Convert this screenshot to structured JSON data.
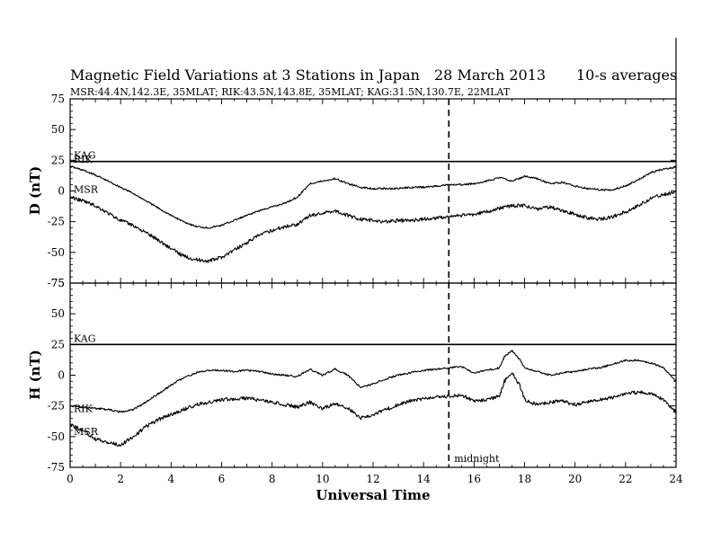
{
  "header": {
    "title": "Magnetic Field Variations at 3 Stations in Japan",
    "date": "28 March   2013",
    "averaging": "10-s averages",
    "stations_line": "MSR:44.4N,142.3E, 35MLAT;  RIK:43.5N,143.8E, 35MLAT;  KAG:31.5N,130.7E, 22MLAT"
  },
  "chart_data": [
    {
      "type": "line",
      "panel": "top",
      "ylabel": "D (nT)",
      "ylim": [
        -75,
        75
      ],
      "yticks": [
        75,
        50,
        25,
        0,
        -25,
        -50,
        -75
      ],
      "xlim": [
        0,
        24
      ],
      "series": [
        {
          "name": "KAG",
          "x": [
            0,
            24
          ],
          "y": [
            24,
            24
          ]
        },
        {
          "name": "RIK",
          "x": [
            0,
            0.5,
            1,
            1.5,
            2,
            2.5,
            3,
            3.5,
            4,
            4.5,
            5,
            5.5,
            6,
            6.5,
            7,
            7.5,
            8,
            8.5,
            9,
            9.5,
            10,
            10.5,
            11,
            11.5,
            12,
            12.5,
            13,
            13.5,
            14,
            14.5,
            15,
            15.5,
            16,
            16.5,
            17,
            17.5,
            18,
            18.5,
            19,
            19.5,
            20,
            20.5,
            21,
            21.5,
            22,
            22.5,
            23,
            23.5,
            24
          ],
          "y": [
            20,
            17,
            13,
            8,
            3,
            -2,
            -8,
            -14,
            -20,
            -25,
            -29,
            -30,
            -28,
            -24,
            -20,
            -16,
            -13,
            -10,
            -5,
            6,
            8,
            10,
            6,
            3,
            2,
            2,
            2,
            3,
            3,
            4,
            5,
            5,
            6,
            8,
            11,
            8,
            12,
            10,
            6,
            7,
            4,
            2,
            1,
            1,
            4,
            9,
            15,
            18,
            19
          ]
        },
        {
          "name": "MSR",
          "x": [
            0,
            0.5,
            1,
            1.5,
            2,
            2.5,
            3,
            3.5,
            4,
            4.5,
            5,
            5.5,
            6,
            6.5,
            7,
            7.5,
            8,
            8.5,
            9,
            9.5,
            10,
            10.5,
            11,
            11.5,
            12,
            12.5,
            13,
            13.5,
            14,
            14.5,
            15,
            15.5,
            16,
            16.5,
            17,
            17.5,
            18,
            18.5,
            19,
            19.5,
            20,
            20.5,
            21,
            21.5,
            22,
            22.5,
            23,
            23.5,
            24
          ],
          "y": [
            -5,
            -8,
            -12,
            -18,
            -24,
            -28,
            -34,
            -40,
            -47,
            -53,
            -56,
            -57,
            -54,
            -48,
            -42,
            -36,
            -32,
            -29,
            -27,
            -20,
            -18,
            -16,
            -20,
            -23,
            -24,
            -25,
            -24,
            -24,
            -23,
            -22,
            -21,
            -20,
            -19,
            -17,
            -14,
            -12,
            -12,
            -15,
            -13,
            -16,
            -19,
            -22,
            -23,
            -21,
            -17,
            -12,
            -6,
            -3,
            -1
          ]
        }
      ]
    },
    {
      "type": "line",
      "panel": "bottom",
      "ylabel": "H (nT)",
      "xlabel": "Universal Time",
      "ylim": [
        -75,
        75
      ],
      "yticks": [
        75,
        50,
        25,
        0,
        -25,
        -50,
        -75
      ],
      "xlim": [
        0,
        24
      ],
      "xticks": [
        0,
        2,
        4,
        6,
        8,
        10,
        12,
        14,
        16,
        18,
        20,
        22,
        24
      ],
      "series": [
        {
          "name": "KAG",
          "x": [
            0,
            24
          ],
          "y": [
            25,
            25
          ]
        },
        {
          "name": "RIK",
          "x": [
            0,
            0.5,
            1,
            1.5,
            2,
            2.5,
            3,
            3.5,
            4,
            4.5,
            5,
            5.5,
            6,
            6.5,
            7,
            7.5,
            8,
            8.5,
            9,
            9.5,
            10,
            10.5,
            11,
            11.5,
            12,
            12.5,
            13,
            13.5,
            14,
            14.5,
            15,
            15.5,
            16,
            16.5,
            17,
            17.2,
            17.5,
            17.8,
            18,
            18.5,
            19,
            19.5,
            20,
            20.5,
            21,
            21.5,
            22,
            22.5,
            23,
            23.5,
            24
          ],
          "y": [
            -25,
            -26,
            -27,
            -28,
            -30,
            -28,
            -22,
            -15,
            -8,
            -2,
            2,
            4,
            4,
            3,
            4,
            3,
            1,
            0,
            -1,
            5,
            0,
            5,
            0,
            -10,
            -7,
            -3,
            0,
            2,
            4,
            5,
            6,
            7,
            2,
            4,
            6,
            15,
            20,
            13,
            6,
            3,
            0,
            2,
            3,
            5,
            6,
            9,
            12,
            12,
            10,
            6,
            -5
          ]
        },
        {
          "name": "MSR",
          "x": [
            0,
            0.5,
            1,
            1.5,
            2,
            2.5,
            3,
            3.5,
            4,
            4.5,
            5,
            5.5,
            6,
            6.5,
            7,
            7.5,
            8,
            8.5,
            9,
            9.5,
            10,
            10.5,
            11,
            11.5,
            12,
            12.5,
            13,
            13.5,
            14,
            14.5,
            15,
            15.5,
            16,
            16.5,
            17,
            17.2,
            17.5,
            17.8,
            18,
            18.5,
            19,
            19.5,
            20,
            20.5,
            21,
            21.5,
            22,
            22.5,
            23,
            23.5,
            24
          ],
          "y": [
            -40,
            -45,
            -52,
            -55,
            -57,
            -50,
            -42,
            -36,
            -32,
            -28,
            -24,
            -22,
            -20,
            -19,
            -19,
            -20,
            -22,
            -24,
            -26,
            -22,
            -27,
            -23,
            -27,
            -35,
            -32,
            -28,
            -24,
            -21,
            -19,
            -18,
            -17,
            -16,
            -21,
            -20,
            -17,
            -5,
            2,
            -8,
            -20,
            -24,
            -22,
            -21,
            -24,
            -22,
            -20,
            -18,
            -15,
            -14,
            -15,
            -20,
            -30
          ]
        }
      ]
    }
  ],
  "annotations": {
    "midnight_label": "midnight",
    "midnight_x": 15
  }
}
